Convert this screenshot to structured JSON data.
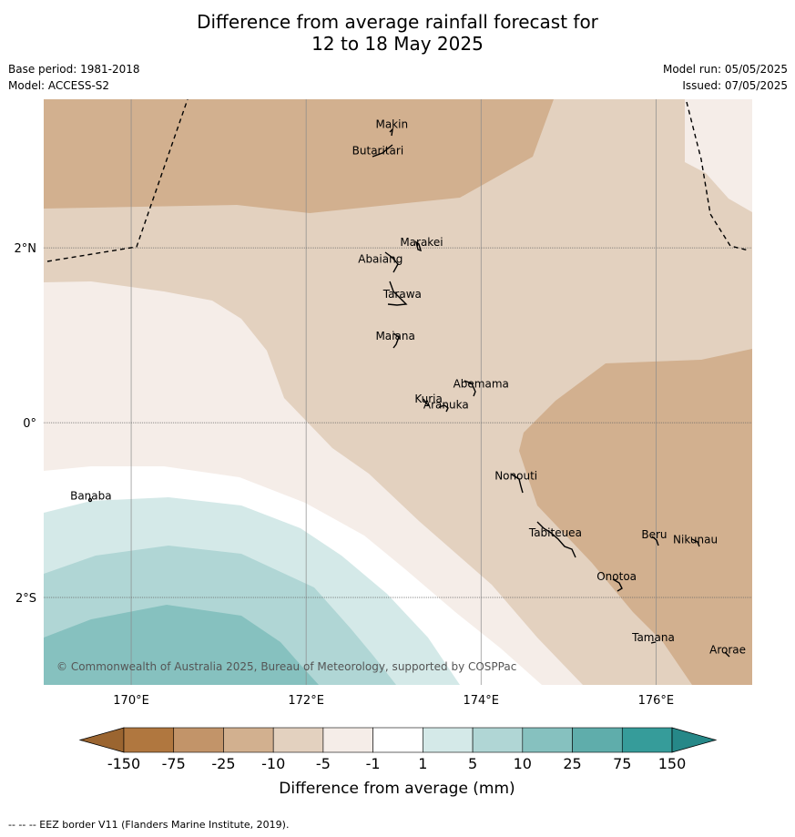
{
  "title": {
    "line1": "Difference from average rainfall forecast for",
    "line2": "12 to 18 May 2025"
  },
  "meta": {
    "base_period": "Base period: 1981-2018",
    "model": "Model: ACCESS-S2",
    "model_run": "Model run: 05/05/2025",
    "issued": "Issued: 07/05/2025"
  },
  "map": {
    "lon_range": [
      169,
      177.1
    ],
    "lat_range": [
      -3,
      3.7
    ],
    "lon_ticks": [
      {
        "value": 170,
        "label": "170°E"
      },
      {
        "value": 172,
        "label": "172°E"
      },
      {
        "value": 174,
        "label": "174°E"
      },
      {
        "value": 176,
        "label": "176°E"
      }
    ],
    "lat_ticks": [
      {
        "value": 2,
        "label": "2°N"
      },
      {
        "value": 0,
        "label": "0°"
      },
      {
        "value": -2,
        "label": "2°S"
      }
    ],
    "islands": [
      {
        "name": "Makin",
        "lon": 172.98,
        "lat": 3.37
      },
      {
        "name": "Butaritari",
        "lon": 172.82,
        "lat": 3.07
      },
      {
        "name": "Marakei",
        "lon": 173.32,
        "lat": 2.02
      },
      {
        "name": "Abaiang",
        "lon": 172.85,
        "lat": 1.83
      },
      {
        "name": "Tarawa",
        "lon": 173.1,
        "lat": 1.43
      },
      {
        "name": "Maiana",
        "lon": 173.02,
        "lat": 0.95
      },
      {
        "name": "Abemama",
        "lon": 174.0,
        "lat": 0.4
      },
      {
        "name": "Kuria",
        "lon": 173.4,
        "lat": 0.23
      },
      {
        "name": "Aranuka",
        "lon": 173.6,
        "lat": 0.16
      },
      {
        "name": "Banaba",
        "lon": 169.54,
        "lat": -0.88
      },
      {
        "name": "Nonouti",
        "lon": 174.4,
        "lat": -0.65
      },
      {
        "name": "Tabiteuea",
        "lon": 174.85,
        "lat": -1.3
      },
      {
        "name": "Beru",
        "lon": 175.98,
        "lat": -1.32
      },
      {
        "name": "Nikunau",
        "lon": 176.45,
        "lat": -1.38
      },
      {
        "name": "Onotoa",
        "lon": 175.55,
        "lat": -1.8
      },
      {
        "name": "Tamana",
        "lon": 175.97,
        "lat": -2.5
      },
      {
        "name": "Arorae",
        "lon": 176.82,
        "lat": -2.64
      }
    ],
    "copyright": "© Commonwealth of Australia 2025, Bureau of Meteorology, supported by COSPPac"
  },
  "colorbar": {
    "labels": [
      "-150",
      "-75",
      "-25",
      "-10",
      "-5",
      "-1",
      "1",
      "5",
      "10",
      "25",
      "75",
      "150"
    ],
    "colors": [
      "#b0773f",
      "#c29469",
      "#d2b08f",
      "#e3d1bf",
      "#f5ede8",
      "#ffffff",
      "#d4e9e8",
      "#b0d6d5",
      "#86c1bf",
      "#5fadab",
      "#369c9a"
    ],
    "low_extend_color": "#9b6530",
    "high_extend_color": "#268888",
    "label": "Difference from average (mm)"
  },
  "footer": "--  --  -- EEZ border V11 (Flanders Marine Institute, 2019)."
}
